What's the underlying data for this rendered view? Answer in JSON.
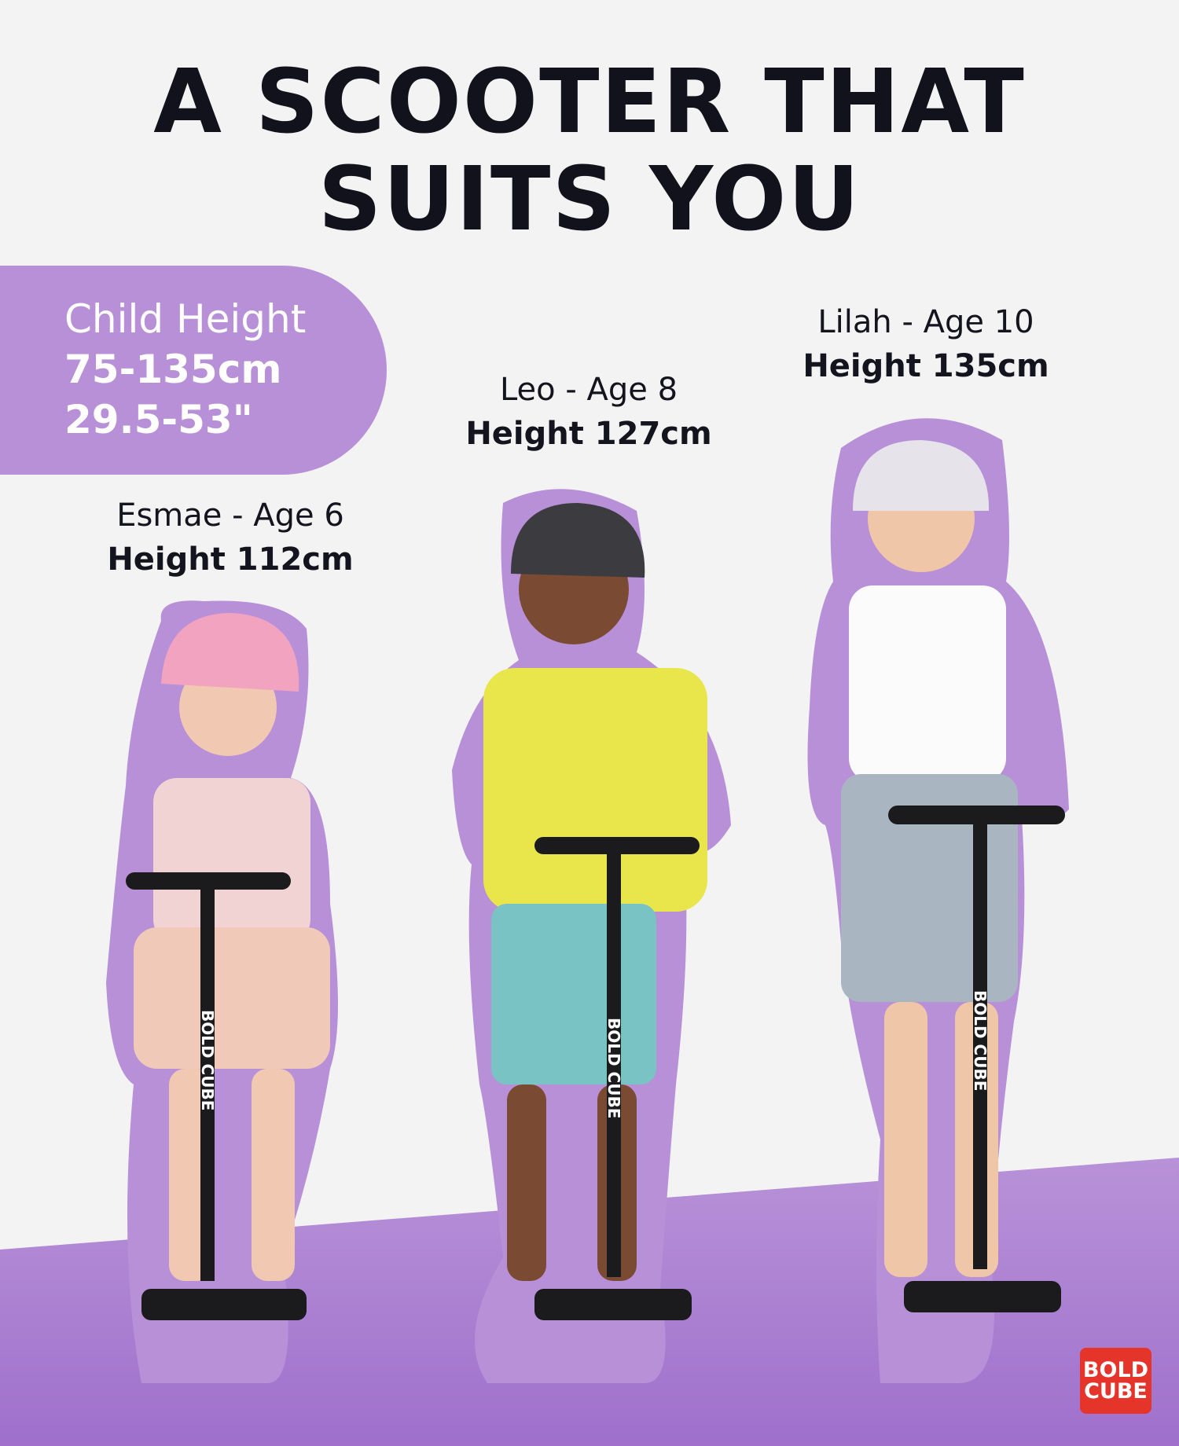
{
  "headline": {
    "line1": "A SCOOTER THAT",
    "line2": "SUITS YOU"
  },
  "height_range": {
    "label": "Child Height",
    "cm": "75-135cm",
    "inches": "29.5-53\""
  },
  "children": [
    {
      "name_age": "Esmae - Age 6",
      "height": "Height 112cm",
      "helmet": "#f2a3c0",
      "top": "#f1d3d3",
      "bottom": "#f0c9b8"
    },
    {
      "name_age": "Leo - Age 8",
      "height": "Height 127cm",
      "helmet": "#3c3c40",
      "top": "#e8e64a",
      "bottom": "#79c3c4"
    },
    {
      "name_age": "Lilah - Age 10",
      "height": "Height 135cm",
      "helmet": "#e6e4ea",
      "top": "#fbfbfb",
      "bottom": "#a9b6c2"
    }
  ],
  "scooter_brand": "BOLD CUBE",
  "logo": {
    "line1": "BOLD",
    "line2": "CUBE"
  },
  "colors": {
    "accent": "#b890d8",
    "floor": "#a87ad0",
    "logo": "#e5352b",
    "title": "#12121c"
  }
}
